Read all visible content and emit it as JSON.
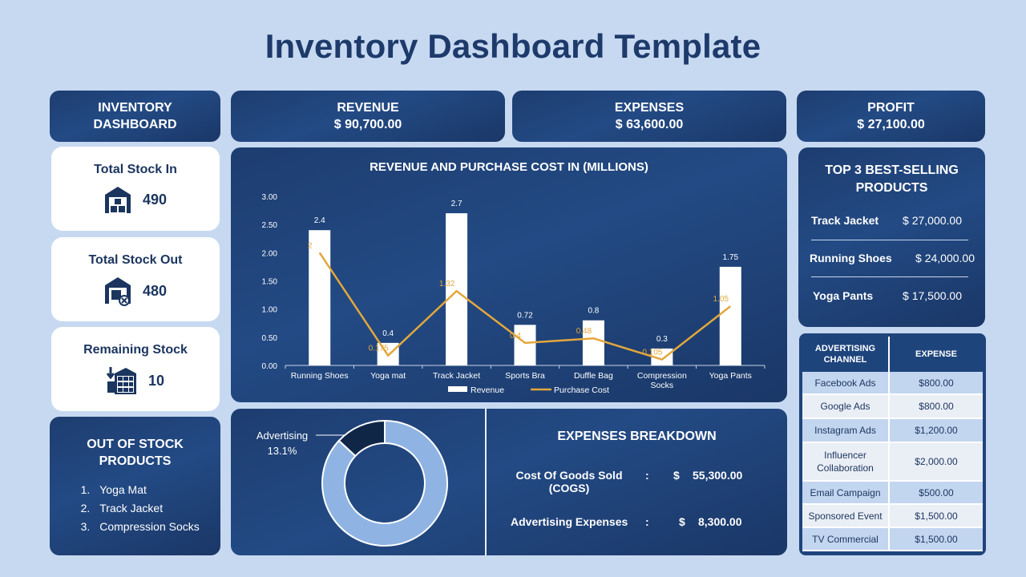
{
  "title": "Inventory Dashboard Template",
  "header": {
    "inventory": {
      "line1": "INVENTORY",
      "line2": "DASHBOARD"
    },
    "revenue": {
      "label": "REVENUE",
      "value": "$ 90,700.00"
    },
    "expenses": {
      "label": "EXPENSES",
      "value": "$ 63,600.00"
    },
    "profit": {
      "label": "PROFIT",
      "value": "$ 27,100.00"
    }
  },
  "stats": {
    "stock_in": {
      "label": "Total Stock In",
      "value": "490",
      "icon": "warehouse-boxes-icon"
    },
    "stock_out": {
      "label": "Total Stock Out",
      "value": "480",
      "icon": "warehouse-out-icon"
    },
    "remaining": {
      "label": "Remaining Stock",
      "value": "10",
      "icon": "storage-shelves-icon"
    }
  },
  "out_of_stock": {
    "title_line1": "OUT OF STOCK",
    "title_line2": "PRODUCTS",
    "items": [
      {
        "num": "1.",
        "name": "Yoga Mat"
      },
      {
        "num": "2.",
        "name": "Track Jacket"
      },
      {
        "num": "3.",
        "name": "Compression Socks"
      }
    ]
  },
  "chart_data": {
    "type": "bar",
    "title": "REVENUE AND PURCHASE COST IN (MILLIONS)",
    "categories": [
      "Running Shoes",
      "Yoga mat",
      "Track Jacket",
      "Sports Bra",
      "Duffle Bag",
      "Compression Socks",
      "Yoga Pants"
    ],
    "series": [
      {
        "name": "Revenue",
        "type": "bar",
        "values": [
          2.4,
          0.4,
          2.7,
          0.72,
          0.8,
          0.3,
          1.75
        ],
        "labels": [
          "2.4",
          "0.4",
          "2.7",
          "0.72",
          "0.8",
          "0.3",
          "1.75"
        ]
      },
      {
        "name": "Purchase Cost",
        "type": "line",
        "values": [
          2,
          0.175,
          1.32,
          0.4,
          0.48,
          0.105,
          1.05
        ],
        "labels": [
          "2",
          "0.175",
          "1.32",
          "0.4",
          "0.48",
          "0.105",
          "1.05"
        ]
      }
    ],
    "yticks": [
      "0.00",
      "0.50",
      "1.00",
      "1.50",
      "2.00",
      "2.50",
      "3.00"
    ],
    "ylim": [
      0,
      3
    ],
    "legend_position": "bottom",
    "colors": {
      "bar": "#ffffff",
      "line": "#e3a73c"
    }
  },
  "donut": {
    "label": "Advertising",
    "pct_label": "13.1%",
    "segments": [
      {
        "name": "Advertising",
        "value": 13.1,
        "color": "#0f2647"
      },
      {
        "name": "Cost Of Goods Sold",
        "value": 86.9,
        "color": "#8fb4e3"
      }
    ]
  },
  "expenses_breakdown": {
    "title": "EXPENSES BREAKDOWN",
    "rows": [
      {
        "label_line1": "Cost Of Goods Sold",
        "label_line2": "(COGS)",
        "sep": ":",
        "currency": "$",
        "value": "55,300.00"
      },
      {
        "label_line1": "Advertising Expenses",
        "label_line2": "",
        "sep": ":",
        "currency": "$",
        "value": "8,300.00"
      }
    ]
  },
  "top3": {
    "title_line1": "TOP 3 BEST-SELLING",
    "title_line2": "PRODUCTS",
    "items": [
      {
        "name": "Track Jacket",
        "value": "$ 27,000.00"
      },
      {
        "name": "Running Shoes",
        "value": "$ 24,000.00"
      },
      {
        "name": "Yoga Pants",
        "value": "$ 17,500.00"
      }
    ]
  },
  "advertising": {
    "header_channel_line1": "ADVERTISING",
    "header_channel_line2": "CHANNEL",
    "header_expense": "EXPENSE",
    "rows": [
      {
        "channel": "Facebook Ads",
        "expense": "$800.00"
      },
      {
        "channel": "Google Ads",
        "expense": "$800.00"
      },
      {
        "channel": "Instagram Ads",
        "expense": "$1,200.00"
      },
      {
        "channel": "Influencer Collaboration",
        "expense": "$2,000.00"
      },
      {
        "channel": "Email Campaign",
        "expense": "$500.00"
      },
      {
        "channel": "Sponsored Event",
        "expense": "$1,500.00"
      },
      {
        "channel": "TV Commercial",
        "expense": "$1,500.00"
      }
    ]
  }
}
